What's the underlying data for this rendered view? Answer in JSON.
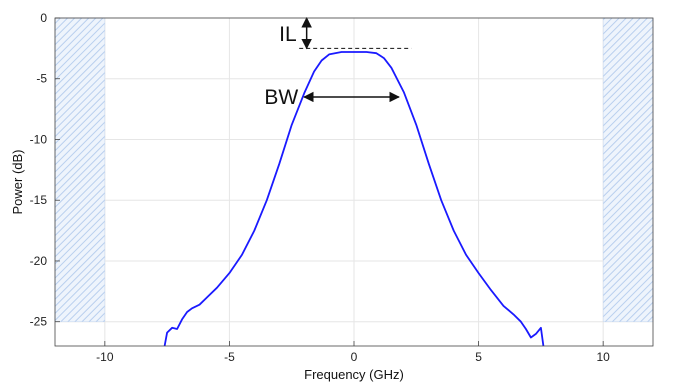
{
  "chart_data": {
    "type": "line",
    "title": "",
    "xlabel": "Frequency (GHz)",
    "ylabel": "Power (dB)",
    "xlim": [
      -12,
      12
    ],
    "ylim": [
      -27,
      0
    ],
    "x_ticks": [
      -10,
      -5,
      0,
      5,
      10
    ],
    "y_ticks": [
      0,
      -5,
      -10,
      -15,
      -20,
      -25
    ],
    "grid": true,
    "series": [
      {
        "color": "#1a1aff",
        "points": [
          [
            -7.6,
            -27.0
          ],
          [
            -7.5,
            -25.9
          ],
          [
            -7.3,
            -25.5
          ],
          [
            -7.1,
            -25.6
          ],
          [
            -6.9,
            -24.8
          ],
          [
            -6.7,
            -24.2
          ],
          [
            -6.5,
            -23.9
          ],
          [
            -6.2,
            -23.6
          ],
          [
            -5.9,
            -23.0
          ],
          [
            -5.5,
            -22.2
          ],
          [
            -5.0,
            -21.0
          ],
          [
            -4.5,
            -19.5
          ],
          [
            -4.0,
            -17.5
          ],
          [
            -3.5,
            -15.0
          ],
          [
            -3.0,
            -12.0
          ],
          [
            -2.5,
            -8.8
          ],
          [
            -2.0,
            -6.2
          ],
          [
            -1.6,
            -4.4
          ],
          [
            -1.3,
            -3.5
          ],
          [
            -1.0,
            -3.0
          ],
          [
            -0.5,
            -2.8
          ],
          [
            0.0,
            -2.8
          ],
          [
            0.5,
            -2.8
          ],
          [
            0.9,
            -2.9
          ],
          [
            1.2,
            -3.3
          ],
          [
            1.5,
            -4.1
          ],
          [
            2.0,
            -6.1
          ],
          [
            2.5,
            -8.8
          ],
          [
            3.0,
            -12.0
          ],
          [
            3.5,
            -15.0
          ],
          [
            4.0,
            -17.5
          ],
          [
            4.5,
            -19.5
          ],
          [
            5.0,
            -21.0
          ],
          [
            5.5,
            -22.4
          ],
          [
            6.0,
            -23.7
          ],
          [
            6.4,
            -24.4
          ],
          [
            6.7,
            -25.0
          ],
          [
            6.9,
            -25.6
          ],
          [
            7.1,
            -26.3
          ],
          [
            7.3,
            -26.0
          ],
          [
            7.5,
            -25.5
          ],
          [
            7.6,
            -27.0
          ]
        ]
      }
    ],
    "shaded_regions": [
      {
        "x": [
          -12,
          -10
        ],
        "y": [
          -25,
          0
        ],
        "color": "#cfe0f5"
      },
      {
        "x": [
          10,
          12
        ],
        "y": [
          -25,
          0
        ],
        "color": "#cfe0f5"
      }
    ],
    "annotations": [
      {
        "text": "IL",
        "type": "vertical-double-arrow",
        "x": -1.9,
        "y": [
          0,
          -2.5
        ]
      },
      {
        "text": "BW",
        "type": "horizontal-double-arrow",
        "x": [
          -2.0,
          1.8
        ],
        "y": -6.5
      },
      {
        "type": "dashed-line",
        "x": [
          -2.2,
          2.3
        ],
        "y": -2.5
      }
    ]
  }
}
